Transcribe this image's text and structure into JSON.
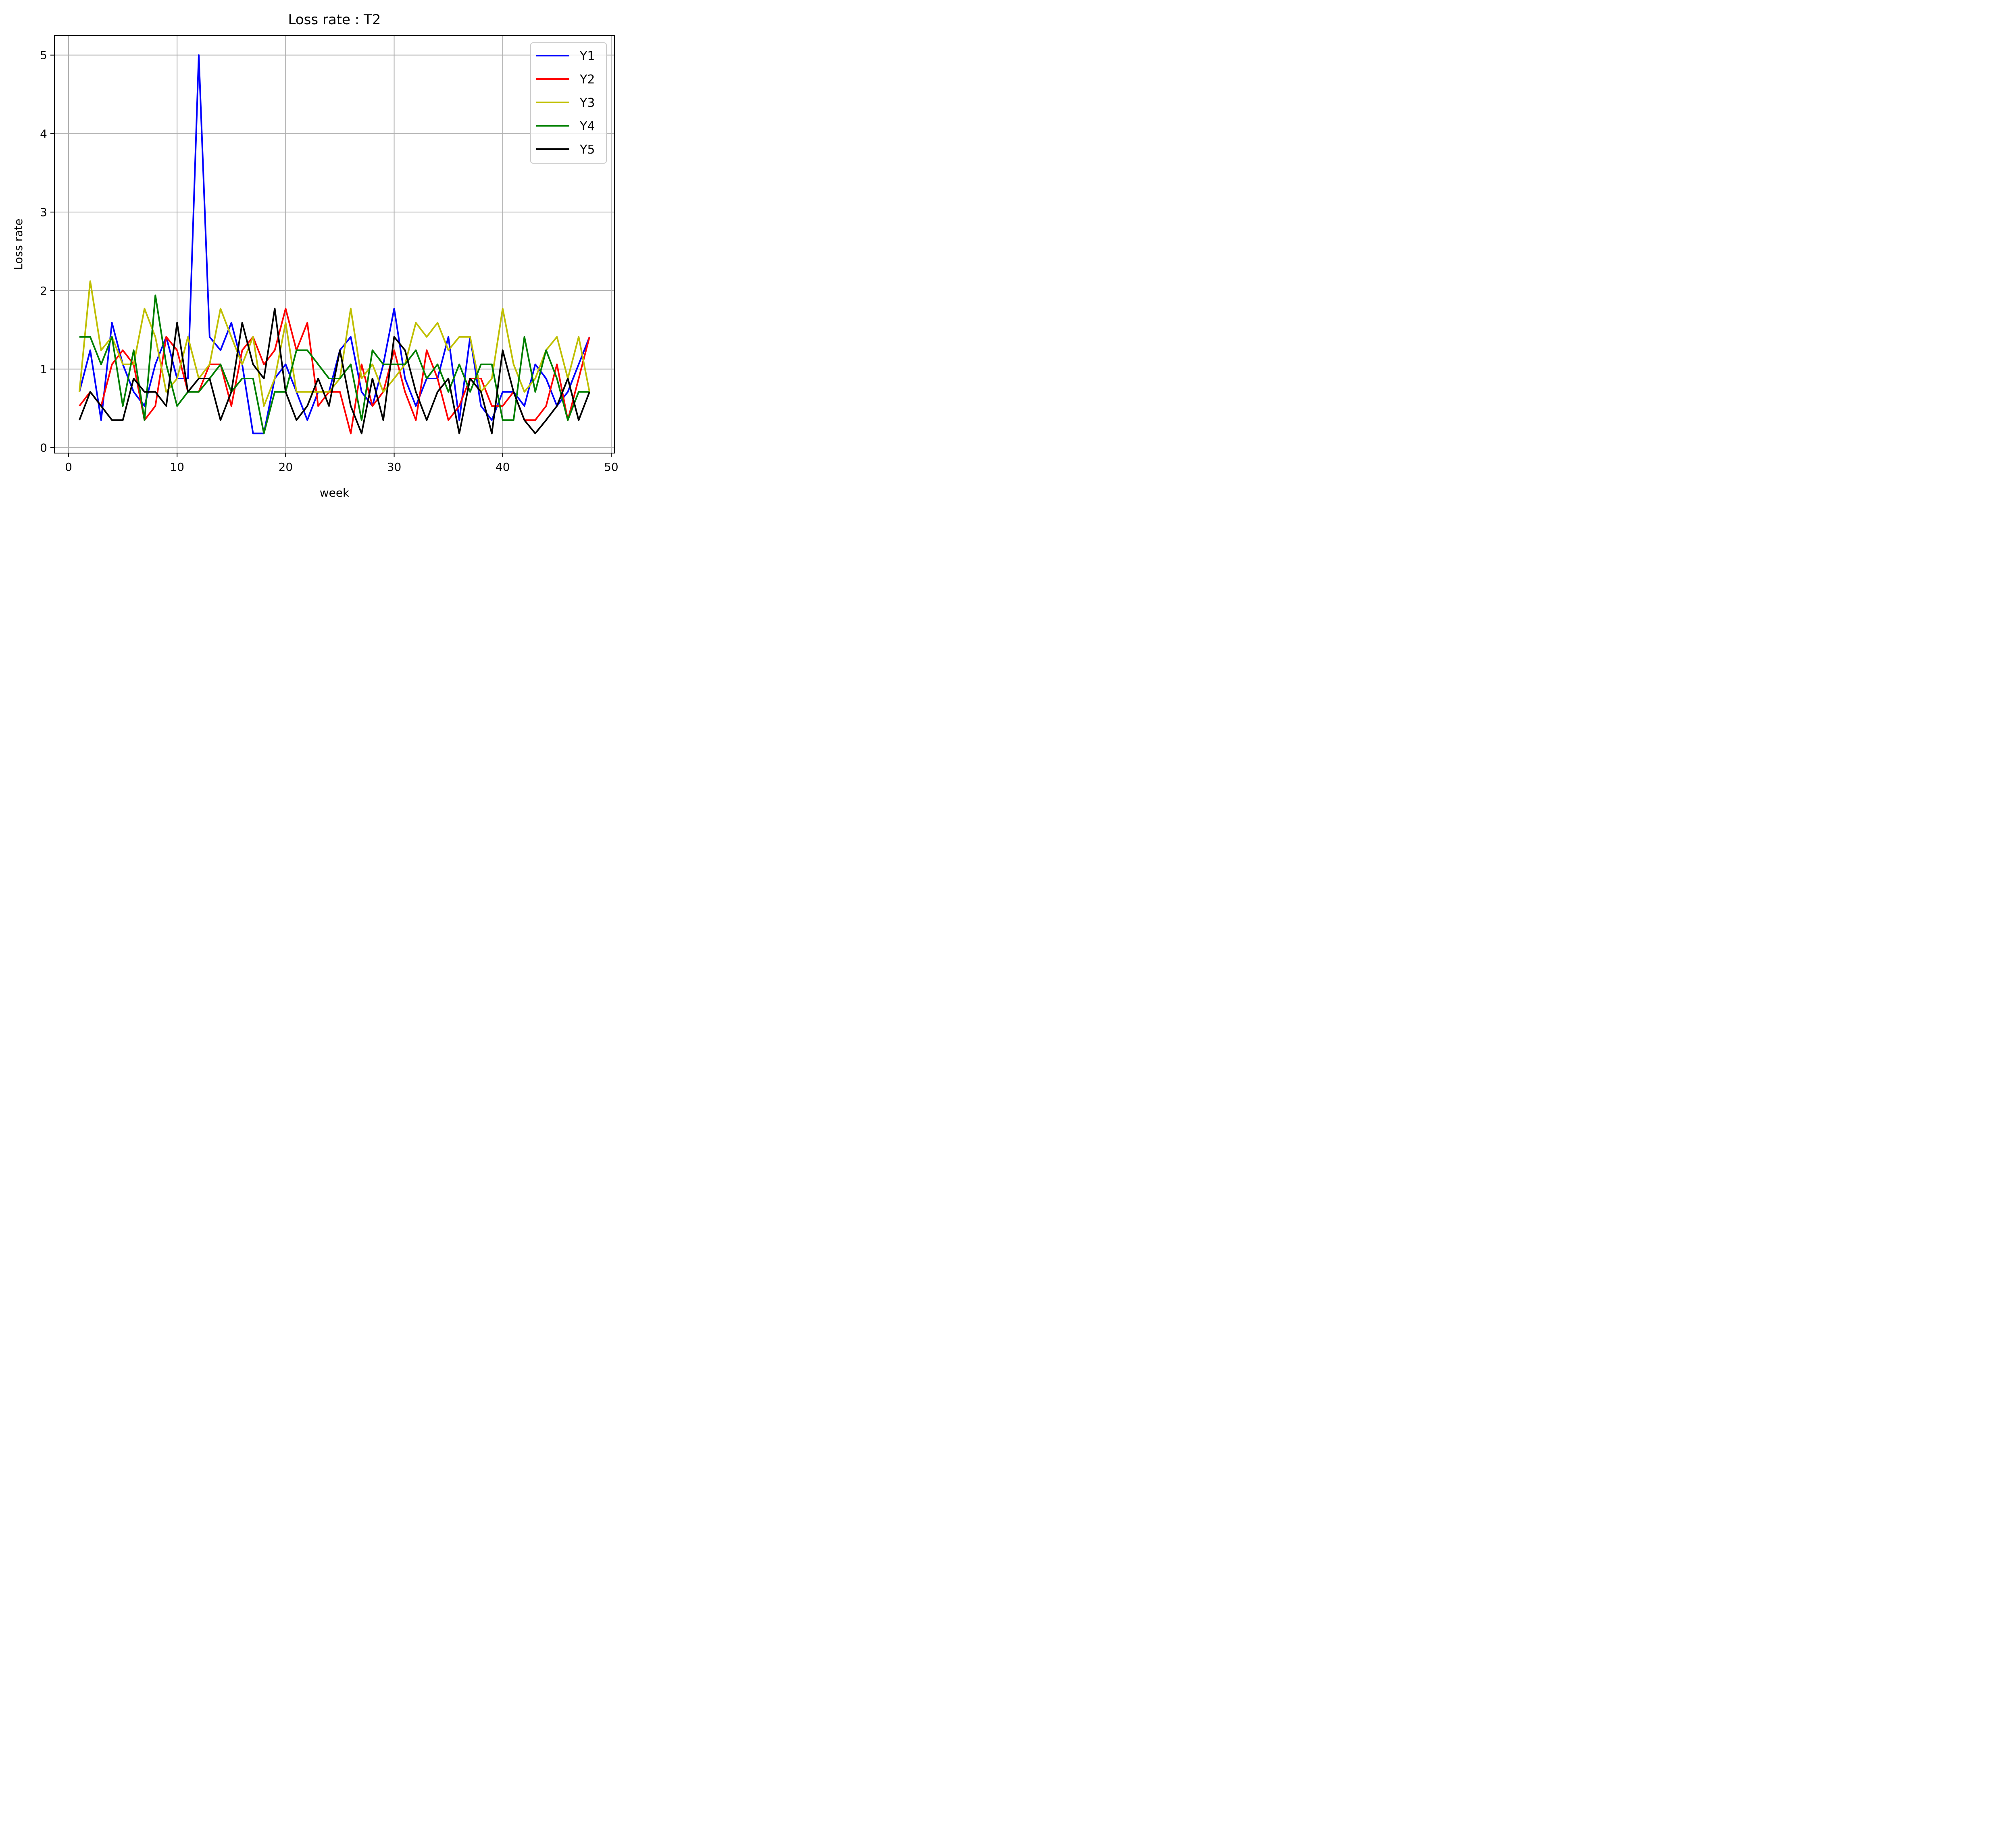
{
  "chart_data": {
    "type": "line",
    "title": "Loss rate : T2",
    "xlabel": "week",
    "ylabel": "Loss rate",
    "xlim": [
      -1.3,
      50.3
    ],
    "ylim": [
      -0.07,
      5.25
    ],
    "x_ticks": [
      0,
      10,
      20,
      30,
      40,
      50
    ],
    "y_ticks": [
      0,
      1,
      2,
      3,
      4,
      5
    ],
    "grid": true,
    "legend_position": "top-right",
    "x": [
      1,
      2,
      3,
      4,
      5,
      6,
      7,
      8,
      9,
      10,
      11,
      12,
      13,
      14,
      15,
      16,
      17,
      18,
      19,
      20,
      21,
      22,
      23,
      24,
      25,
      26,
      27,
      28,
      29,
      30,
      31,
      32,
      33,
      34,
      35,
      36,
      37,
      38,
      39,
      40,
      41,
      42,
      43,
      44,
      45,
      46,
      47,
      48
    ],
    "series": [
      {
        "name": "Y1",
        "color": "#0000ff",
        "values": [
          0.71,
          1.24,
          0.35,
          1.59,
          1.06,
          0.71,
          0.53,
          1.06,
          1.41,
          0.88,
          0.88,
          5.0,
          1.41,
          1.24,
          1.59,
          1.06,
          0.18,
          0.18,
          0.88,
          1.06,
          0.71,
          0.35,
          0.71,
          0.71,
          1.24,
          1.41,
          0.71,
          0.53,
          1.06,
          1.77,
          0.88,
          0.53,
          0.88,
          0.88,
          1.41,
          0.35,
          1.41,
          0.53,
          0.35,
          0.71,
          0.71,
          0.53,
          1.06,
          0.88,
          0.53,
          0.71,
          1.06,
          1.41
        ]
      },
      {
        "name": "Y2",
        "color": "#ff0000",
        "values": [
          0.53,
          0.71,
          0.53,
          1.06,
          1.24,
          1.06,
          0.35,
          0.53,
          1.41,
          1.24,
          0.71,
          0.71,
          1.06,
          1.06,
          0.53,
          1.24,
          1.41,
          1.06,
          1.24,
          1.77,
          1.24,
          1.59,
          0.53,
          0.71,
          0.71,
          0.18,
          1.06,
          0.53,
          0.71,
          1.24,
          0.71,
          0.35,
          1.24,
          0.88,
          0.35,
          0.53,
          0.88,
          0.88,
          0.53,
          0.53,
          0.71,
          0.35,
          0.35,
          0.53,
          1.06,
          0.35,
          0.88,
          1.41
        ]
      },
      {
        "name": "Y3",
        "color": "#bfbf00",
        "values": [
          0.71,
          2.12,
          1.24,
          1.41,
          1.06,
          1.06,
          1.77,
          1.41,
          0.71,
          0.88,
          1.41,
          0.88,
          1.06,
          1.77,
          1.41,
          1.06,
          1.41,
          0.53,
          0.88,
          1.59,
          0.71,
          0.71,
          0.71,
          0.71,
          0.88,
          1.77,
          0.88,
          1.06,
          0.71,
          0.88,
          1.06,
          1.59,
          1.41,
          1.59,
          1.24,
          1.41,
          1.41,
          0.71,
          0.88,
          1.77,
          1.06,
          0.71,
          0.88,
          1.24,
          1.41,
          0.88,
          1.41,
          0.71
        ]
      },
      {
        "name": "Y4",
        "color": "#008000",
        "values": [
          1.41,
          1.41,
          1.06,
          1.41,
          0.53,
          1.24,
          0.35,
          1.94,
          1.06,
          0.53,
          0.71,
          0.71,
          0.88,
          1.06,
          0.71,
          0.88,
          0.88,
          0.18,
          0.71,
          0.71,
          1.24,
          1.24,
          1.06,
          0.88,
          0.88,
          1.06,
          0.35,
          1.24,
          1.06,
          1.06,
          1.06,
          1.24,
          0.88,
          1.06,
          0.71,
          1.06,
          0.71,
          1.06,
          1.06,
          0.35,
          0.35,
          1.41,
          0.71,
          1.24,
          0.88,
          0.35,
          0.71,
          0.71
        ]
      },
      {
        "name": "Y5",
        "color": "#000000",
        "values": [
          0.35,
          0.71,
          0.53,
          0.35,
          0.35,
          0.88,
          0.71,
          0.71,
          0.53,
          1.59,
          0.71,
          0.88,
          0.88,
          0.35,
          0.71,
          1.59,
          1.06,
          0.88,
          1.77,
          0.71,
          0.35,
          0.53,
          0.88,
          0.53,
          1.24,
          0.53,
          0.18,
          0.88,
          0.35,
          1.41,
          1.24,
          0.71,
          0.35,
          0.71,
          0.88,
          0.18,
          0.88,
          0.71,
          0.18,
          1.24,
          0.71,
          0.35,
          0.18,
          0.35,
          0.53,
          0.88,
          0.35,
          0.71
        ]
      }
    ]
  }
}
